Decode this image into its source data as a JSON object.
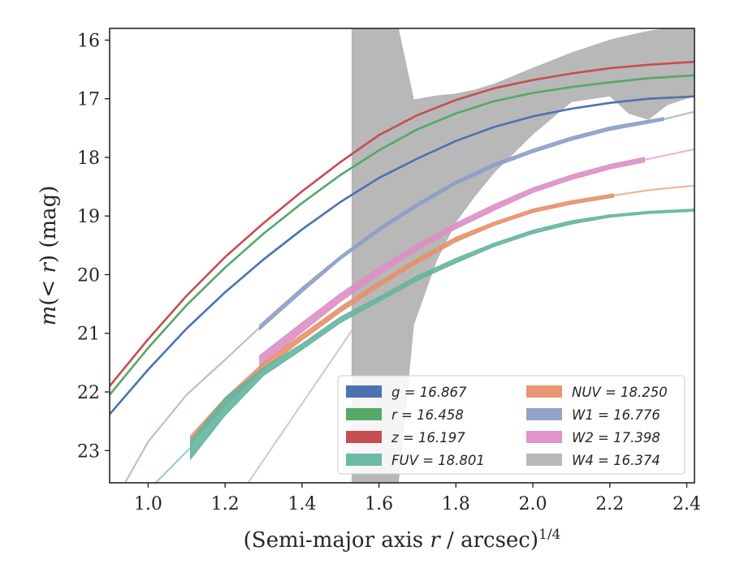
{
  "chart_data": {
    "type": "line",
    "xlabel": "(Semi-major axis r / arcsec)^{1/4}",
    "ylabel": "m(<r) (mag)",
    "xlim": [
      0.9,
      2.42
    ],
    "ylim": [
      23.55,
      15.8
    ],
    "y_inverted": true,
    "grid": false,
    "legend_position": "bottom-right",
    "legend_columns": 2,
    "xticks": [
      "1.0",
      "1.2",
      "1.4",
      "1.6",
      "1.8",
      "2.0",
      "2.2",
      "2.4"
    ],
    "yticks": [
      "16",
      "17",
      "18",
      "19",
      "20",
      "21",
      "22",
      "23"
    ],
    "series": [
      {
        "legend": "g = 16.867",
        "color": "#4c72b0",
        "style": "line",
        "x": [
          0.9,
          1.0,
          1.1,
          1.2,
          1.3,
          1.4,
          1.5,
          1.6,
          1.7,
          1.8,
          1.9,
          2.0,
          2.1,
          2.2,
          2.3,
          2.42
        ],
        "y": [
          22.38,
          21.62,
          20.92,
          20.3,
          19.74,
          19.23,
          18.76,
          18.35,
          18.02,
          17.72,
          17.48,
          17.3,
          17.17,
          17.07,
          17.0,
          16.96
        ]
      },
      {
        "legend": "r = 16.458",
        "color": "#55a868",
        "style": "line",
        "x": [
          0.9,
          1.0,
          1.1,
          1.2,
          1.3,
          1.4,
          1.5,
          1.6,
          1.7,
          1.8,
          1.9,
          2.0,
          2.1,
          2.2,
          2.3,
          2.42
        ],
        "y": [
          22.05,
          21.25,
          20.52,
          19.88,
          19.3,
          18.78,
          18.3,
          17.88,
          17.52,
          17.25,
          17.04,
          16.9,
          16.8,
          16.72,
          16.65,
          16.6
        ]
      },
      {
        "legend": "z = 16.197",
        "color": "#c44e52",
        "style": "line",
        "x": [
          0.9,
          1.0,
          1.1,
          1.2,
          1.3,
          1.4,
          1.5,
          1.6,
          1.7,
          1.8,
          1.9,
          2.0,
          2.1,
          2.2,
          2.3,
          2.42
        ],
        "y": [
          21.9,
          21.1,
          20.36,
          19.7,
          19.12,
          18.58,
          18.08,
          17.62,
          17.28,
          17.02,
          16.82,
          16.68,
          16.57,
          16.48,
          16.42,
          16.37
        ]
      },
      {
        "legend": "FUV = 18.801",
        "color": "#64b5a0",
        "style": "band",
        "x": [
          1.11,
          1.2,
          1.3,
          1.4,
          1.5,
          1.6,
          1.7,
          1.8,
          1.9,
          2.0,
          2.1,
          2.2,
          2.3,
          2.42
        ],
        "y_low": [
          22.82,
          22.1,
          21.58,
          21.18,
          20.72,
          20.38,
          20.02,
          19.72,
          19.46,
          19.24,
          19.08,
          18.98,
          18.92,
          18.88
        ],
        "y_high": [
          23.15,
          22.4,
          21.72,
          21.28,
          20.82,
          20.46,
          20.1,
          19.8,
          19.52,
          19.3,
          19.14,
          19.02,
          18.96,
          18.92
        ],
        "extension_x": [
          1.02,
          1.11
        ],
        "extension_y": [
          23.55,
          22.95
        ]
      },
      {
        "legend": "NUV = 18.250",
        "color": "#e8906b",
        "style": "band",
        "x": [
          1.11,
          1.2,
          1.3,
          1.4,
          1.5,
          1.6,
          1.7,
          1.8,
          1.9,
          2.0,
          2.1,
          2.21
        ],
        "y_low": [
          22.75,
          22.1,
          21.5,
          21.02,
          20.55,
          20.12,
          19.72,
          19.36,
          19.1,
          18.88,
          18.74,
          18.62
        ],
        "y_high": [
          22.9,
          22.24,
          21.62,
          21.12,
          20.64,
          20.2,
          19.8,
          19.44,
          19.16,
          18.94,
          18.8,
          18.68
        ],
        "extension_x": [
          2.21,
          2.3,
          2.42
        ],
        "extension_y": [
          18.65,
          18.56,
          18.48
        ]
      },
      {
        "legend": "W1 = 16.776",
        "color": "#8c9ec4",
        "style": "band",
        "x": [
          1.29,
          1.4,
          1.5,
          1.6,
          1.7,
          1.8,
          1.9,
          2.0,
          2.1,
          2.2,
          2.34
        ],
        "y_low": [
          20.86,
          20.22,
          19.68,
          19.2,
          18.78,
          18.4,
          18.1,
          17.86,
          17.65,
          17.48,
          17.32
        ],
        "y_high": [
          20.94,
          20.3,
          19.74,
          19.26,
          18.84,
          18.46,
          18.16,
          17.92,
          17.71,
          17.54,
          17.37
        ],
        "extension_x": [
          0.94,
          1.0,
          1.1,
          1.2,
          1.29
        ],
        "extension_y": [
          23.55,
          22.85,
          22.05,
          21.45,
          20.9
        ],
        "extension_x2": [
          2.34,
          2.42
        ],
        "extension_y2": [
          17.35,
          17.22
        ]
      },
      {
        "legend": "W2 = 17.398",
        "color": "#dd8fc4",
        "style": "band",
        "x": [
          1.29,
          1.4,
          1.5,
          1.6,
          1.7,
          1.8,
          1.9,
          2.0,
          2.1,
          2.2,
          2.29
        ],
        "y_low": [
          21.38,
          20.82,
          20.32,
          19.88,
          19.48,
          19.12,
          18.8,
          18.52,
          18.3,
          18.12,
          18.0
        ],
        "y_high": [
          21.58,
          20.98,
          20.46,
          20.0,
          19.58,
          19.22,
          18.9,
          18.6,
          18.38,
          18.2,
          18.08
        ],
        "extension_x": [
          2.29,
          2.42
        ],
        "extension_y": [
          18.04,
          17.86
        ]
      },
      {
        "legend": "W4 = 16.374",
        "color": "#b4b4b4",
        "style": "band",
        "x": [
          1.53,
          1.6,
          1.65,
          1.69,
          1.75,
          1.8,
          1.85,
          1.9,
          2.0,
          2.1,
          2.2,
          2.25,
          2.3,
          2.35,
          2.42
        ],
        "y_low": [
          23.55,
          23.55,
          23.55,
          20.85,
          19.75,
          19.1,
          18.65,
          18.25,
          17.6,
          17.05,
          16.95,
          17.25,
          17.35,
          17.1,
          16.95
        ],
        "y_high": [
          15.8,
          15.8,
          15.8,
          17.02,
          16.95,
          16.92,
          16.85,
          16.75,
          16.48,
          16.22,
          16.0,
          15.92,
          15.85,
          15.8,
          15.8
        ],
        "extension_x": [
          1.26,
          1.4,
          1.53
        ],
        "extension_y": [
          23.55,
          22.2,
          20.95
        ]
      }
    ]
  }
}
